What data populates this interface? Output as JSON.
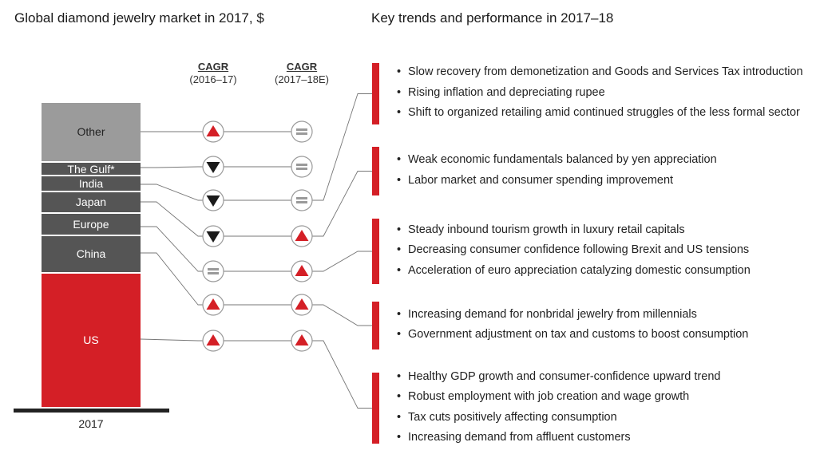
{
  "chart_data": {
    "type": "bar",
    "title": "Global diamond jewelry market in 2017, $",
    "categories": [
      "2017"
    ],
    "stack_order_bottom_to_top": [
      "US",
      "China",
      "Europe",
      "Japan",
      "India",
      "The Gulf*",
      "Other"
    ],
    "series": [
      {
        "name": "US",
        "values": [
          38.5
        ],
        "color": "#d41f26"
      },
      {
        "name": "China",
        "values": [
          10.5
        ],
        "color": "#555555"
      },
      {
        "name": "Europe",
        "values": [
          6.5
        ],
        "color": "#555555"
      },
      {
        "name": "Japan",
        "values": [
          6
        ],
        "color": "#555555"
      },
      {
        "name": "India",
        "values": [
          4.5
        ],
        "color": "#555555"
      },
      {
        "name": "The Gulf*",
        "values": [
          4
        ],
        "color": "#555555"
      },
      {
        "name": "Other",
        "values": [
          17
        ],
        "color": "#9b9b9b"
      }
    ],
    "cagr_columns": [
      {
        "label": "CAGR",
        "sublabel": "(2016–17)"
      },
      {
        "label": "CAGR",
        "sublabel": "(2017–18E)"
      }
    ],
    "cagr": [
      {
        "region": "Other",
        "y2016_17": "up",
        "y2017_18": "flat"
      },
      {
        "region": "The Gulf*",
        "y2016_17": "down",
        "y2017_18": "flat"
      },
      {
        "region": "India",
        "y2016_17": "down",
        "y2017_18": "flat"
      },
      {
        "region": "Japan",
        "y2016_17": "down",
        "y2017_18": "up"
      },
      {
        "region": "Europe",
        "y2016_17": "flat",
        "y2017_18": "up"
      },
      {
        "region": "China",
        "y2016_17": "up",
        "y2017_18": "up"
      },
      {
        "region": "US",
        "y2016_17": "up",
        "y2017_18": "up"
      }
    ]
  },
  "right_title": "Key trends and performance in 2017–18",
  "year_label": "2017",
  "trend_groups": [
    {
      "region": "India",
      "items": [
        "Slow recovery from demonetization and Goods and Services Tax introduction",
        "Rising inflation and depreciating rupee",
        "Shift to organized retailing amid continued struggles of the less formal sector"
      ]
    },
    {
      "region": "Japan",
      "items": [
        "Weak economic fundamentals balanced by yen appreciation",
        "Labor market and consumer spending improvement"
      ]
    },
    {
      "region": "Europe",
      "items": [
        "Steady inbound tourism growth in luxury retail capitals",
        "Decreasing consumer confidence following Brexit and US tensions",
        "Acceleration of euro appreciation catalyzing domestic consumption"
      ]
    },
    {
      "region": "China",
      "items": [
        "Increasing demand for nonbridal jewelry from millennials",
        "Government adjustment on tax and customs to boost consumption"
      ]
    },
    {
      "region": "US",
      "items": [
        "Healthy GDP growth and consumer-confidence upward trend",
        "Robust employment with job creation and wage growth",
        "Tax cuts positively affecting consumption",
        "Increasing demand from affluent customers"
      ]
    }
  ],
  "colors": {
    "accent": "#d41f26",
    "dark_segment": "#555555",
    "other_segment": "#9b9b9b"
  }
}
